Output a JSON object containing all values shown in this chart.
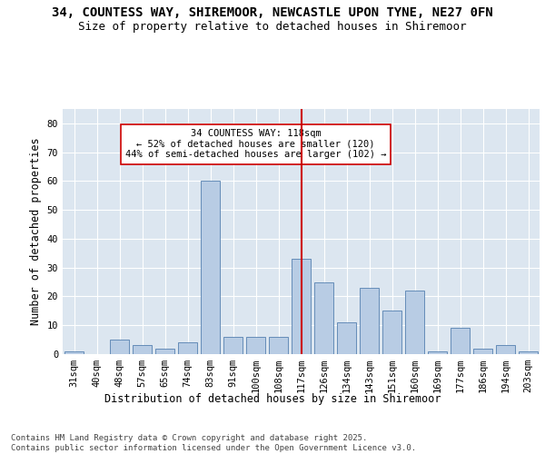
{
  "title_line1": "34, COUNTESS WAY, SHIREMOOR, NEWCASTLE UPON TYNE, NE27 0FN",
  "title_line2": "Size of property relative to detached houses in Shiremoor",
  "xlabel": "Distribution of detached houses by size in Shiremoor",
  "ylabel": "Number of detached properties",
  "categories": [
    "31sqm",
    "40sqm",
    "48sqm",
    "57sqm",
    "65sqm",
    "74sqm",
    "83sqm",
    "91sqm",
    "100sqm",
    "108sqm",
    "117sqm",
    "126sqm",
    "134sqm",
    "143sqm",
    "151sqm",
    "160sqm",
    "169sqm",
    "177sqm",
    "186sqm",
    "194sqm",
    "203sqm"
  ],
  "values": [
    1,
    0,
    5,
    3,
    2,
    4,
    60,
    6,
    6,
    6,
    33,
    25,
    11,
    23,
    15,
    22,
    1,
    9,
    2,
    3,
    1
  ],
  "bar_color": "#b8cce4",
  "bar_edge_color": "#5580b0",
  "vline_x_index": 10,
  "vline_color": "#cc0000",
  "annotation_text": "34 COUNTESS WAY: 118sqm\n← 52% of detached houses are smaller (120)\n44% of semi-detached houses are larger (102) →",
  "annotation_box_color": "#ffffff",
  "annotation_box_edge_color": "#cc0000",
  "ylim": [
    0,
    85
  ],
  "yticks": [
    0,
    10,
    20,
    30,
    40,
    50,
    60,
    70,
    80
  ],
  "bg_color": "#dce6f0",
  "grid_color": "#ffffff",
  "footer_text": "Contains HM Land Registry data © Crown copyright and database right 2025.\nContains public sector information licensed under the Open Government Licence v3.0.",
  "title_fontsize": 10,
  "subtitle_fontsize": 9,
  "axis_label_fontsize": 8.5,
  "tick_fontsize": 7.5,
  "annotation_fontsize": 7.5,
  "footer_fontsize": 6.5
}
